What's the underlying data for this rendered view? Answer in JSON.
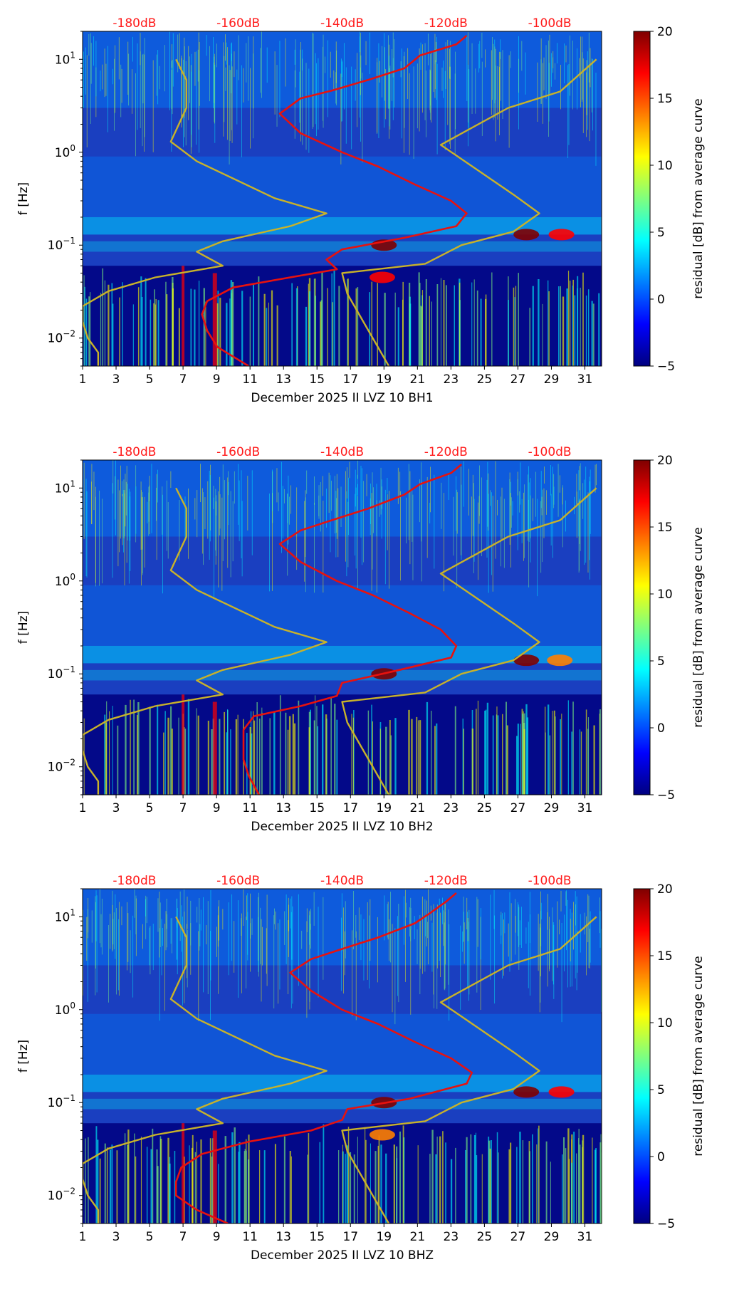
{
  "colors": {
    "spectrogram_background": "#1a3fc0",
    "median_curve": "#e8120e",
    "model_curve": "#c8b22a",
    "db_scale_text": "#ff1a1a",
    "colormap": [
      "#00007f",
      "#0000ff",
      "#007fff",
      "#00ffff",
      "#7fff7f",
      "#ffff00",
      "#ff7f00",
      "#ff0000",
      "#7f0000"
    ]
  },
  "chart_data": [
    {
      "type": "heatmap",
      "channel": "BH1",
      "xlabel": "December 2025 II LVZ 10 BH1",
      "ylabel": "f [Hz]",
      "xlim": [
        1,
        32
      ],
      "ylim": [
        0.005,
        20
      ],
      "x_ticks": [
        1,
        3,
        5,
        7,
        9,
        11,
        13,
        15,
        17,
        19,
        21,
        23,
        25,
        27,
        29,
        31
      ],
      "y_ticks": [
        {
          "value": 0.01,
          "label": "10",
          "exp": "−2"
        },
        {
          "value": 0.1,
          "label": "10",
          "exp": "−1"
        },
        {
          "value": 1,
          "label": "10",
          "exp": "0"
        },
        {
          "value": 10,
          "label": "10",
          "exp": "1"
        }
      ],
      "db_scale_labels": [
        "-180dB",
        "-160dB",
        "-140dB",
        "-120dB",
        "-100dB"
      ],
      "db_scale_range": [
        -190,
        -90
      ],
      "colorbar": {
        "label": "residual [dB] from average curve",
        "range": [
          -5,
          20
        ],
        "ticks": [
          -5,
          0,
          5,
          10,
          15,
          20
        ]
      },
      "hotspots": [
        {
          "day": 19.0,
          "freq": 0.1,
          "residual": 20
        },
        {
          "day": 18.9,
          "freq": 0.045,
          "residual": 17
        },
        {
          "day": 27.5,
          "freq": 0.13,
          "residual": 20
        },
        {
          "day": 29.6,
          "freq": 0.13,
          "residual": 17
        }
      ],
      "series": [
        {
          "name": "median PSD",
          "style": "red",
          "points": [
            [
              -158,
              0.005
            ],
            [
              -164,
              0.008
            ],
            [
              -166,
              0.012
            ],
            [
              -167,
              0.018
            ],
            [
              -166,
              0.025
            ],
            [
              -161,
              0.035
            ],
            [
              -150,
              0.045
            ],
            [
              -141,
              0.055
            ],
            [
              -143,
              0.07
            ],
            [
              -140,
              0.09
            ],
            [
              -128,
              0.12
            ],
            [
              -118,
              0.16
            ],
            [
              -116,
              0.22
            ],
            [
              -119,
              0.3
            ],
            [
              -126,
              0.45
            ],
            [
              -133,
              0.7
            ],
            [
              -140,
              1.0
            ],
            [
              -148,
              1.6
            ],
            [
              -152,
              2.6
            ],
            [
              -148,
              3.8
            ],
            [
              -142,
              4.6
            ],
            [
              -135,
              6.0
            ],
            [
              -128,
              8.0
            ],
            [
              -125,
              11.0
            ],
            [
              -118,
              14.5
            ],
            [
              -116,
              18.0
            ]
          ]
        },
        {
          "name": "noise model low",
          "style": "yellow",
          "points": [
            [
              -187,
              0.005
            ],
            [
              -187,
              0.007
            ],
            [
              -189,
              0.01
            ],
            [
              -190,
              0.015
            ],
            [
              -190,
              0.022
            ],
            [
              -185,
              0.032
            ],
            [
              -176,
              0.045
            ],
            [
              -163,
              0.06
            ],
            [
              -168,
              0.085
            ],
            [
              -163,
              0.11
            ],
            [
              -150,
              0.16
            ],
            [
              -143,
              0.22
            ],
            [
              -153,
              0.32
            ],
            [
              -168,
              0.8
            ],
            [
              -173,
              1.3
            ],
            [
              -170,
              3.0
            ],
            [
              -170,
              6.0
            ],
            [
              -172,
              10.0
            ]
          ]
        },
        {
          "name": "noise model high",
          "style": "yellow",
          "points": [
            [
              -131,
              0.005
            ],
            [
              -139,
              0.03
            ],
            [
              -140,
              0.05
            ],
            [
              -124,
              0.063
            ],
            [
              -117,
              0.1
            ],
            [
              -107,
              0.14
            ],
            [
              -102,
              0.22
            ],
            [
              -107,
              0.35
            ],
            [
              -121,
              1.2
            ],
            [
              -108,
              3.0
            ],
            [
              -98,
              4.5
            ],
            [
              -91,
              10.0
            ]
          ]
        }
      ]
    },
    {
      "type": "heatmap",
      "channel": "BH2",
      "xlabel": "December 2025 II LVZ 10 BH2",
      "ylabel": "f [Hz]",
      "xlim": [
        1,
        32
      ],
      "ylim": [
        0.005,
        20
      ],
      "x_ticks": [
        1,
        3,
        5,
        7,
        9,
        11,
        13,
        15,
        17,
        19,
        21,
        23,
        25,
        27,
        29,
        31
      ],
      "y_ticks": [
        {
          "value": 0.01,
          "label": "10",
          "exp": "−2"
        },
        {
          "value": 0.1,
          "label": "10",
          "exp": "−1"
        },
        {
          "value": 1,
          "label": "10",
          "exp": "0"
        },
        {
          "value": 10,
          "label": "10",
          "exp": "1"
        }
      ],
      "db_scale_labels": [
        "-180dB",
        "-160dB",
        "-140dB",
        "-120dB",
        "-100dB"
      ],
      "db_scale_range": [
        -190,
        -90
      ],
      "colorbar": {
        "label": "residual [dB] from average curve",
        "range": [
          -5,
          20
        ],
        "ticks": [
          -5,
          0,
          5,
          10,
          15,
          20
        ]
      },
      "hotspots": [
        {
          "day": 19.0,
          "freq": 0.1,
          "residual": 20
        },
        {
          "day": 27.5,
          "freq": 0.14,
          "residual": 19
        },
        {
          "day": 29.5,
          "freq": 0.14,
          "residual": 14
        }
      ],
      "series": [
        {
          "name": "median PSD",
          "style": "red",
          "points": [
            [
              -156,
              0.005
            ],
            [
              -158,
              0.008
            ],
            [
              -159,
              0.012
            ],
            [
              -159,
              0.018
            ],
            [
              -159,
              0.025
            ],
            [
              -157,
              0.035
            ],
            [
              -148,
              0.045
            ],
            [
              -141,
              0.058
            ],
            [
              -140,
              0.08
            ],
            [
              -129,
              0.11
            ],
            [
              -119,
              0.15
            ],
            [
              -118,
              0.2
            ],
            [
              -121,
              0.3
            ],
            [
              -127,
              0.45
            ],
            [
              -134,
              0.7
            ],
            [
              -141,
              1.0
            ],
            [
              -148,
              1.6
            ],
            [
              -152,
              2.5
            ],
            [
              -148,
              3.5
            ],
            [
              -142,
              4.5
            ],
            [
              -135,
              6.0
            ],
            [
              -128,
              8.5
            ],
            [
              -125,
              11.0
            ],
            [
              -119,
              14.5
            ],
            [
              -117,
              18.0
            ]
          ]
        },
        {
          "name": "noise model low",
          "style": "yellow",
          "points": [
            [
              -187,
              0.005
            ],
            [
              -187,
              0.007
            ],
            [
              -189,
              0.01
            ],
            [
              -190,
              0.015
            ],
            [
              -190,
              0.022
            ],
            [
              -185,
              0.032
            ],
            [
              -176,
              0.045
            ],
            [
              -163,
              0.06
            ],
            [
              -168,
              0.085
            ],
            [
              -163,
              0.11
            ],
            [
              -150,
              0.16
            ],
            [
              -143,
              0.22
            ],
            [
              -153,
              0.32
            ],
            [
              -168,
              0.8
            ],
            [
              -173,
              1.3
            ],
            [
              -170,
              3.0
            ],
            [
              -170,
              6.0
            ],
            [
              -172,
              10.0
            ]
          ]
        },
        {
          "name": "noise model high",
          "style": "yellow",
          "points": [
            [
              -131,
              0.005
            ],
            [
              -139,
              0.03
            ],
            [
              -140,
              0.05
            ],
            [
              -124,
              0.063
            ],
            [
              -117,
              0.1
            ],
            [
              -107,
              0.14
            ],
            [
              -102,
              0.22
            ],
            [
              -107,
              0.35
            ],
            [
              -121,
              1.2
            ],
            [
              -108,
              3.0
            ],
            [
              -98,
              4.5
            ],
            [
              -91,
              10.0
            ]
          ]
        }
      ]
    },
    {
      "type": "heatmap",
      "channel": "BHZ",
      "xlabel": "December 2025 II LVZ 10 BHZ",
      "ylabel": "f [Hz]",
      "xlim": [
        1,
        32
      ],
      "ylim": [
        0.005,
        20
      ],
      "x_ticks": [
        1,
        3,
        5,
        7,
        9,
        11,
        13,
        15,
        17,
        19,
        21,
        23,
        25,
        27,
        29,
        31
      ],
      "y_ticks": [
        {
          "value": 0.01,
          "label": "10",
          "exp": "−2"
        },
        {
          "value": 0.1,
          "label": "10",
          "exp": "−1"
        },
        {
          "value": 1,
          "label": "10",
          "exp": "0"
        },
        {
          "value": 10,
          "label": "10",
          "exp": "1"
        }
      ],
      "db_scale_labels": [
        "-180dB",
        "-160dB",
        "-140dB",
        "-120dB",
        "-100dB"
      ],
      "db_scale_range": [
        -190,
        -90
      ],
      "colorbar": {
        "label": "residual [dB] from average curve",
        "range": [
          -5,
          20
        ],
        "ticks": [
          -5,
          0,
          5,
          10,
          15,
          20
        ]
      },
      "hotspots": [
        {
          "day": 19.0,
          "freq": 0.1,
          "residual": 20
        },
        {
          "day": 18.9,
          "freq": 0.045,
          "residual": 14
        },
        {
          "day": 27.5,
          "freq": 0.13,
          "residual": 20
        },
        {
          "day": 29.6,
          "freq": 0.13,
          "residual": 17
        }
      ],
      "series": [
        {
          "name": "median PSD",
          "style": "red",
          "points": [
            [
              -162,
              0.005
            ],
            [
              -168,
              0.007
            ],
            [
              -172,
              0.01
            ],
            [
              -172,
              0.014
            ],
            [
              -171,
              0.02
            ],
            [
              -167,
              0.028
            ],
            [
              -158,
              0.038
            ],
            [
              -146,
              0.05
            ],
            [
              -140,
              0.065
            ],
            [
              -139,
              0.085
            ],
            [
              -127,
              0.11
            ],
            [
              -116,
              0.16
            ],
            [
              -115,
              0.21
            ],
            [
              -119,
              0.3
            ],
            [
              -126,
              0.45
            ],
            [
              -133,
              0.7
            ],
            [
              -140,
              1.0
            ],
            [
              -146,
              1.6
            ],
            [
              -150,
              2.5
            ],
            [
              -146,
              3.5
            ],
            [
              -140,
              4.5
            ],
            [
              -133,
              6.0
            ],
            [
              -126,
              8.5
            ],
            [
              -123,
              11.0
            ],
            [
              -120,
              14.5
            ],
            [
              -118,
              18.0
            ]
          ]
        },
        {
          "name": "noise model low",
          "style": "yellow",
          "points": [
            [
              -187,
              0.005
            ],
            [
              -187,
              0.007
            ],
            [
              -189,
              0.01
            ],
            [
              -190,
              0.015
            ],
            [
              -190,
              0.022
            ],
            [
              -185,
              0.032
            ],
            [
              -176,
              0.045
            ],
            [
              -163,
              0.06
            ],
            [
              -168,
              0.085
            ],
            [
              -163,
              0.11
            ],
            [
              -150,
              0.16
            ],
            [
              -143,
              0.22
            ],
            [
              -153,
              0.32
            ],
            [
              -168,
              0.8
            ],
            [
              -173,
              1.3
            ],
            [
              -170,
              3.0
            ],
            [
              -170,
              6.0
            ],
            [
              -172,
              10.0
            ]
          ]
        },
        {
          "name": "noise model high",
          "style": "yellow",
          "points": [
            [
              -131,
              0.005
            ],
            [
              -139,
              0.03
            ],
            [
              -140,
              0.05
            ],
            [
              -124,
              0.063
            ],
            [
              -117,
              0.1
            ],
            [
              -107,
              0.14
            ],
            [
              -102,
              0.22
            ],
            [
              -107,
              0.35
            ],
            [
              -121,
              1.2
            ],
            [
              -108,
              3.0
            ],
            [
              -98,
              4.5
            ],
            [
              -91,
              10.0
            ]
          ]
        }
      ]
    }
  ]
}
